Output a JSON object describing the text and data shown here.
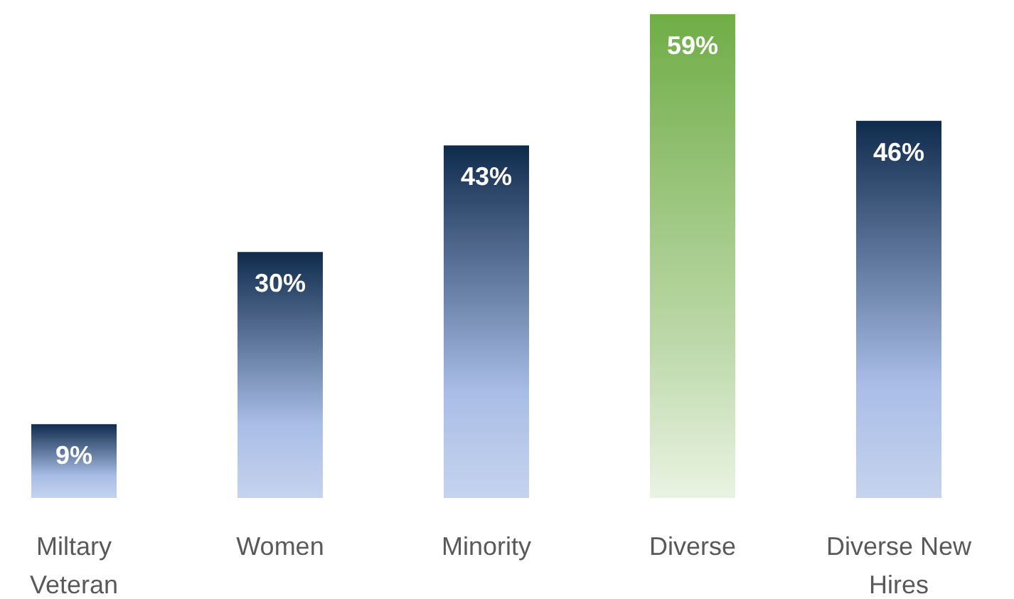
{
  "chart_data": {
    "type": "bar",
    "categories": [
      "Miltary Veteran",
      "Women",
      "Minority",
      "Diverse",
      "Diverse New Hires"
    ],
    "values": [
      9,
      30,
      43,
      59,
      46
    ],
    "colors": [
      "#0f2b4c",
      "#0f2b4c",
      "#0f2b4c",
      "#70ad47",
      "#0f2b4c"
    ],
    "value_labels": [
      "9%",
      "30%",
      "43%",
      "59%",
      "46%"
    ]
  }
}
